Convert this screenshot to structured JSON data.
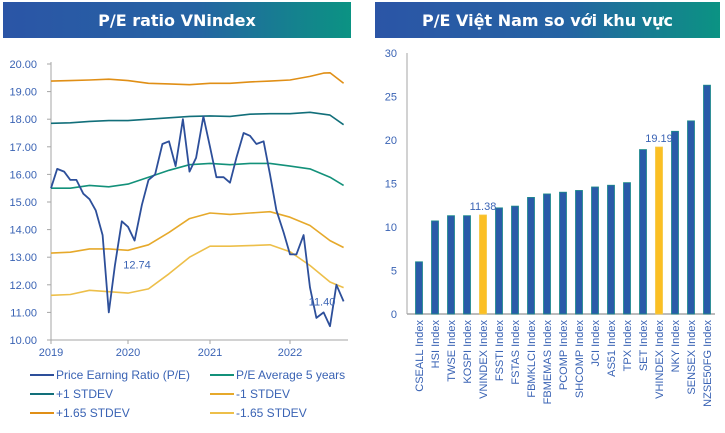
{
  "panels": {
    "left_title": "P/E ratio VNindex",
    "right_title": "P/E Việt Nam so với khu vực"
  },
  "chart_data": [
    {
      "type": "line",
      "title": "P/E ratio VNindex",
      "xlabel": "",
      "ylabel": "",
      "xlim": [
        2019.0,
        2022.75
      ],
      "ylim": [
        10,
        20
      ],
      "yticks": [
        "10.00",
        "11.00",
        "12.00",
        "13.00",
        "14.00",
        "15.00",
        "16.00",
        "17.00",
        "18.00",
        "19.00",
        "20.00"
      ],
      "xticks": [
        "2019",
        "2020",
        "2021",
        "2022"
      ],
      "grid": false,
      "legend_position": "bottom",
      "annotations": [
        {
          "text": "12.74",
          "x": 2020.05,
          "y": 12.74
        },
        {
          "text": "11.40",
          "x": 2022.6,
          "y": 11.4
        }
      ],
      "series": [
        {
          "name": "Price Earning Ratio (P/E)",
          "color": "#2d4f9a",
          "points": [
            [
              2019.0,
              15.5
            ],
            [
              2019.08,
              16.2
            ],
            [
              2019.17,
              16.1
            ],
            [
              2019.25,
              15.8
            ],
            [
              2019.33,
              15.8
            ],
            [
              2019.42,
              15.3
            ],
            [
              2019.5,
              15.1
            ],
            [
              2019.58,
              14.7
            ],
            [
              2019.67,
              13.8
            ],
            [
              2019.75,
              11.0
            ],
            [
              2019.83,
              12.7
            ],
            [
              2019.92,
              14.3
            ],
            [
              2020.0,
              14.1
            ],
            [
              2020.08,
              13.6
            ],
            [
              2020.17,
              14.9
            ],
            [
              2020.25,
              15.8
            ],
            [
              2020.33,
              16.0
            ],
            [
              2020.42,
              17.1
            ],
            [
              2020.5,
              17.2
            ],
            [
              2020.58,
              16.3
            ],
            [
              2020.67,
              18.0
            ],
            [
              2020.75,
              16.1
            ],
            [
              2020.83,
              16.6
            ],
            [
              2020.92,
              18.1
            ],
            [
              2021.0,
              17.0
            ],
            [
              2021.08,
              15.9
            ],
            [
              2021.17,
              15.9
            ],
            [
              2021.25,
              15.7
            ],
            [
              2021.33,
              16.6
            ],
            [
              2021.42,
              17.5
            ],
            [
              2021.5,
              17.4
            ],
            [
              2021.58,
              17.1
            ],
            [
              2021.67,
              17.2
            ],
            [
              2021.75,
              16.0
            ],
            [
              2021.83,
              14.7
            ],
            [
              2021.92,
              13.9
            ],
            [
              2022.0,
              13.1
            ],
            [
              2022.08,
              13.1
            ],
            [
              2022.17,
              13.8
            ],
            [
              2022.25,
              11.9
            ],
            [
              2022.33,
              10.8
            ],
            [
              2022.42,
              11.0
            ],
            [
              2022.5,
              10.5
            ],
            [
              2022.58,
              12.0
            ],
            [
              2022.67,
              11.4
            ]
          ]
        },
        {
          "name": "P/E Average 5 years",
          "color": "#13917a",
          "points": [
            [
              2019.0,
              15.5
            ],
            [
              2019.25,
              15.5
            ],
            [
              2019.5,
              15.6
            ],
            [
              2019.75,
              15.55
            ],
            [
              2020.0,
              15.65
            ],
            [
              2020.25,
              15.9
            ],
            [
              2020.5,
              16.15
            ],
            [
              2020.75,
              16.35
            ],
            [
              2021.0,
              16.4
            ],
            [
              2021.25,
              16.35
            ],
            [
              2021.5,
              16.4
            ],
            [
              2021.75,
              16.4
            ],
            [
              2022.0,
              16.3
            ],
            [
              2022.25,
              16.2
            ],
            [
              2022.5,
              15.9
            ],
            [
              2022.67,
              15.6
            ]
          ]
        },
        {
          "name": "+1 STDEV",
          "color": "#126f7a",
          "points": [
            [
              2019.0,
              17.85
            ],
            [
              2019.25,
              17.87
            ],
            [
              2019.5,
              17.92
            ],
            [
              2019.75,
              17.95
            ],
            [
              2020.0,
              17.95
            ],
            [
              2020.25,
              18.0
            ],
            [
              2020.5,
              18.05
            ],
            [
              2020.75,
              18.1
            ],
            [
              2021.0,
              18.12
            ],
            [
              2021.25,
              18.1
            ],
            [
              2021.5,
              18.18
            ],
            [
              2021.75,
              18.2
            ],
            [
              2022.0,
              18.2
            ],
            [
              2022.25,
              18.25
            ],
            [
              2022.5,
              18.15
            ],
            [
              2022.67,
              17.8
            ]
          ]
        },
        {
          "name": "-1 STDEV",
          "color": "#e6a92b",
          "points": [
            [
              2019.0,
              13.15
            ],
            [
              2019.25,
              13.18
            ],
            [
              2019.5,
              13.3
            ],
            [
              2019.75,
              13.3
            ],
            [
              2020.0,
              13.25
            ],
            [
              2020.25,
              13.45
            ],
            [
              2020.5,
              13.9
            ],
            [
              2020.75,
              14.4
            ],
            [
              2021.0,
              14.6
            ],
            [
              2021.25,
              14.55
            ],
            [
              2021.5,
              14.6
            ],
            [
              2021.75,
              14.65
            ],
            [
              2022.0,
              14.45
            ],
            [
              2022.25,
              14.15
            ],
            [
              2022.5,
              13.6
            ],
            [
              2022.67,
              13.35
            ]
          ]
        },
        {
          "name": "+1.65 STDEV",
          "color": "#e08f16",
          "points": [
            [
              2019.0,
              19.38
            ],
            [
              2019.25,
              19.4
            ],
            [
              2019.5,
              19.42
            ],
            [
              2019.75,
              19.45
            ],
            [
              2020.0,
              19.4
            ],
            [
              2020.25,
              19.3
            ],
            [
              2020.5,
              19.28
            ],
            [
              2020.75,
              19.25
            ],
            [
              2021.0,
              19.3
            ],
            [
              2021.25,
              19.3
            ],
            [
              2021.5,
              19.35
            ],
            [
              2021.75,
              19.38
            ],
            [
              2022.0,
              19.42
            ],
            [
              2022.25,
              19.55
            ],
            [
              2022.42,
              19.67
            ],
            [
              2022.5,
              19.68
            ],
            [
              2022.67,
              19.3
            ]
          ]
        },
        {
          "name": "-1.65 STDEV",
          "color": "#edbf4a",
          "points": [
            [
              2019.0,
              11.62
            ],
            [
              2019.25,
              11.65
            ],
            [
              2019.5,
              11.8
            ],
            [
              2019.75,
              11.75
            ],
            [
              2020.0,
              11.7
            ],
            [
              2020.25,
              11.85
            ],
            [
              2020.5,
              12.4
            ],
            [
              2020.75,
              13.0
            ],
            [
              2021.0,
              13.4
            ],
            [
              2021.25,
              13.4
            ],
            [
              2021.5,
              13.42
            ],
            [
              2021.75,
              13.45
            ],
            [
              2022.0,
              13.2
            ],
            [
              2022.25,
              12.7
            ],
            [
              2022.5,
              12.1
            ],
            [
              2022.67,
              11.9
            ]
          ]
        }
      ]
    },
    {
      "type": "bar",
      "title": "P/E Việt Nam so với khu vực",
      "xlabel": "",
      "ylabel": "",
      "ylim": [
        0,
        30
      ],
      "yticks": [
        "0",
        "5",
        "10",
        "15",
        "20",
        "25",
        "30"
      ],
      "grid": false,
      "categories": [
        "CSEALL Index",
        "HSI Index",
        "TWSE Index",
        "KOSPI Index",
        "VNINDEX Index",
        "FSSTI Index",
        "FSTAS Index",
        "FBMKLCI Index",
        "FBMEMAS Index",
        "PCOMP Index",
        "SHCOMP Index",
        "JCI Index",
        "AS51 Index",
        "TPX Index",
        "SET Index",
        "VHINDEX Index",
        "NKY Index",
        "SENSEX Index",
        "NZSE50FG Index"
      ],
      "values": [
        6.0,
        10.7,
        11.3,
        11.3,
        11.38,
        12.2,
        12.4,
        13.4,
        13.8,
        14.0,
        14.2,
        14.6,
        14.8,
        15.1,
        18.9,
        19.19,
        21.0,
        22.2,
        26.3
      ],
      "highlighted": [
        "VNINDEX Index",
        "VHINDEX Index"
      ],
      "data_labels": {
        "VNINDEX Index": "11.38",
        "VHINDEX Index": "19.19"
      },
      "bar_color": "#2a5ba8",
      "bar_edge_color": "#1a8a8a",
      "highlight_color": "#fbbf24"
    }
  ]
}
